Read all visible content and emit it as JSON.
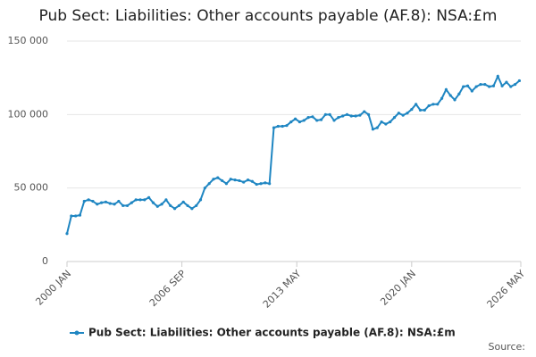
{
  "chart_data": {
    "type": "line",
    "title": "Pub Sect: Liabilities: Other accounts payable (AF.8): NSA:£m",
    "source": "Source:",
    "x": [
      "2000-01",
      "2000-04",
      "2000-07",
      "2000-10",
      "2001-01",
      "2001-04",
      "2001-07",
      "2001-10",
      "2002-01",
      "2002-04",
      "2002-07",
      "2002-10",
      "2003-01",
      "2003-04",
      "2003-07",
      "2003-10",
      "2004-01",
      "2004-04",
      "2004-07",
      "2004-10",
      "2005-01",
      "2005-04",
      "2005-07",
      "2005-10",
      "2006-01",
      "2006-04",
      "2006-07",
      "2006-10",
      "2007-01",
      "2007-04",
      "2007-07",
      "2007-10",
      "2008-01",
      "2008-04",
      "2008-07",
      "2008-10",
      "2009-01",
      "2009-04",
      "2009-07",
      "2009-10",
      "2010-01",
      "2010-04",
      "2010-07",
      "2010-10",
      "2011-01",
      "2011-04",
      "2011-07",
      "2011-10",
      "2012-01",
      "2012-04",
      "2012-07",
      "2012-10",
      "2013-01",
      "2013-04",
      "2013-07",
      "2013-10",
      "2014-01",
      "2014-04",
      "2014-07",
      "2014-10",
      "2015-01",
      "2015-04",
      "2015-07",
      "2015-10",
      "2016-01",
      "2016-04",
      "2016-07",
      "2016-10",
      "2017-01",
      "2017-04",
      "2017-07",
      "2017-10",
      "2018-01",
      "2018-04",
      "2018-07",
      "2018-10",
      "2019-01",
      "2019-04",
      "2019-07",
      "2019-10",
      "2020-01",
      "2020-04",
      "2020-07",
      "2020-10",
      "2021-01",
      "2021-04",
      "2021-07",
      "2021-10",
      "2022-01",
      "2022-04",
      "2022-07",
      "2022-10",
      "2023-01",
      "2023-04",
      "2023-07",
      "2023-10",
      "2024-01",
      "2024-04",
      "2024-07",
      "2024-10",
      "2025-01",
      "2025-04",
      "2025-07",
      "2025-10",
      "2026-01",
      "2026-04"
    ],
    "series": [
      {
        "name": "Pub Sect: Liabilities: Other accounts payable (AF.8): NSA:£m",
        "color": "#1f86c2",
        "values": [
          19000,
          31000,
          31000,
          31500,
          41000,
          42000,
          41000,
          39000,
          40000,
          40500,
          39500,
          39000,
          41000,
          38000,
          38000,
          40000,
          42000,
          42000,
          42000,
          43500,
          40000,
          37500,
          39000,
          42000,
          38000,
          36000,
          38000,
          40500,
          38000,
          36000,
          38000,
          42000,
          50000,
          53000,
          56000,
          57000,
          55000,
          53000,
          56000,
          55500,
          55000,
          54000,
          55500,
          54500,
          52500,
          53000,
          53500,
          53000,
          91000,
          92000,
          92000,
          92500,
          95000,
          97000,
          95000,
          96000,
          98000,
          98500,
          96000,
          96500,
          100000,
          100000,
          96000,
          98000,
          99000,
          100000,
          99000,
          99000,
          99500,
          102000,
          100000,
          90000,
          91000,
          95000,
          93500,
          95000,
          98000,
          101000,
          99500,
          101000,
          103500,
          107000,
          103000,
          103000,
          106000,
          107000,
          107000,
          111000,
          117000,
          113000,
          110000,
          114000,
          119000,
          119500,
          116000,
          119000,
          120500,
          120500,
          119000,
          119500,
          126000,
          119500,
          122000,
          119000,
          120500,
          123000
        ]
      }
    ],
    "xlim": [
      "2000-01",
      "2026-05"
    ],
    "xticks": [
      {
        "value": "2000-01",
        "label": "2000 JAN"
      },
      {
        "value": "2006-09",
        "label": "2006 SEP"
      },
      {
        "value": "2013-05",
        "label": "2013 MAY"
      },
      {
        "value": "2020-01",
        "label": "2020 JAN"
      },
      {
        "value": "2026-05",
        "label": "2026 MAY"
      }
    ],
    "ylim": [
      0,
      150000
    ],
    "yticks": [
      0,
      {
        "value": 50000,
        "label": "50 000"
      },
      {
        "value": 100000,
        "label": "100 000"
      },
      {
        "value": 150000,
        "label": "150 000"
      }
    ],
    "grid": true
  }
}
